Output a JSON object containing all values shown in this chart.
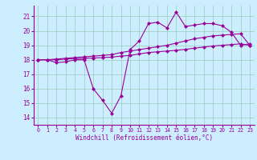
{
  "xlabel": "Windchill (Refroidissement éolien,°C)",
  "x": [
    0,
    1,
    2,
    3,
    4,
    5,
    6,
    7,
    8,
    9,
    10,
    11,
    12,
    13,
    14,
    15,
    16,
    17,
    18,
    19,
    20,
    21,
    22,
    23
  ],
  "line1": [
    18.0,
    18.0,
    17.8,
    17.85,
    18.0,
    18.0,
    16.0,
    15.2,
    14.3,
    15.5,
    18.7,
    19.3,
    20.5,
    20.6,
    20.2,
    21.3,
    20.3,
    20.4,
    20.5,
    20.5,
    20.35,
    19.9,
    19.0,
    19.1
  ],
  "line2": [
    18.0,
    18.0,
    18.05,
    18.1,
    18.15,
    18.2,
    18.25,
    18.3,
    18.35,
    18.5,
    18.6,
    18.7,
    18.8,
    18.9,
    19.0,
    19.15,
    19.3,
    19.45,
    19.55,
    19.65,
    19.7,
    19.75,
    19.8,
    19.0
  ],
  "line3": [
    18.0,
    18.0,
    18.0,
    18.05,
    18.08,
    18.1,
    18.12,
    18.15,
    18.18,
    18.25,
    18.3,
    18.4,
    18.5,
    18.55,
    18.6,
    18.65,
    18.72,
    18.8,
    18.88,
    18.95,
    19.0,
    19.05,
    19.1,
    19.0
  ],
  "ylim": [
    13.5,
    21.8
  ],
  "yticks": [
    14,
    15,
    16,
    17,
    18,
    19,
    20,
    21
  ],
  "line_color": "#990099",
  "bg_color": "#cceeff",
  "grid_color": "#99ccbb",
  "markersize": 2.5
}
